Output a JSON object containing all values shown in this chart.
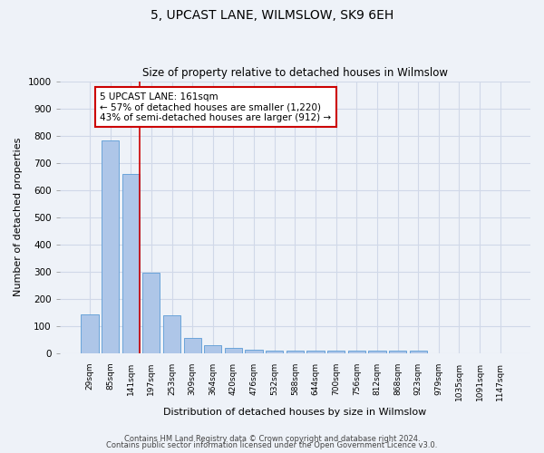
{
  "title": "5, UPCAST LANE, WILMSLOW, SK9 6EH",
  "subtitle": "Size of property relative to detached houses in Wilmslow",
  "xlabel": "Distribution of detached houses by size in Wilmslow",
  "ylabel": "Number of detached properties",
  "categories": [
    "29sqm",
    "85sqm",
    "141sqm",
    "197sqm",
    "253sqm",
    "309sqm",
    "364sqm",
    "420sqm",
    "476sqm",
    "532sqm",
    "588sqm",
    "644sqm",
    "700sqm",
    "756sqm",
    "812sqm",
    "868sqm",
    "923sqm",
    "979sqm",
    "1035sqm",
    "1091sqm",
    "1147sqm"
  ],
  "values": [
    143,
    782,
    660,
    295,
    138,
    55,
    28,
    20,
    14,
    10,
    10,
    10,
    10,
    9,
    9,
    9,
    9,
    0,
    0,
    0,
    0
  ],
  "bar_color": "#aec6e8",
  "bar_edge_color": "#5b9bd5",
  "grid_color": "#d0d8e8",
  "annotation_text_line1": "5 UPCAST LANE: 161sqm",
  "annotation_text_line2": "← 57% of detached houses are smaller (1,220)",
  "annotation_text_line3": "43% of semi-detached houses are larger (912) →",
  "annotation_box_color": "#ffffff",
  "annotation_box_edge": "#cc0000",
  "property_line_color": "#cc0000",
  "ylim": [
    0,
    1000
  ],
  "yticks": [
    0,
    100,
    200,
    300,
    400,
    500,
    600,
    700,
    800,
    900,
    1000
  ],
  "footer_line1": "Contains HM Land Registry data © Crown copyright and database right 2024.",
  "footer_line2": "Contains public sector information licensed under the Open Government Licence v3.0.",
  "bg_color": "#eef2f8"
}
